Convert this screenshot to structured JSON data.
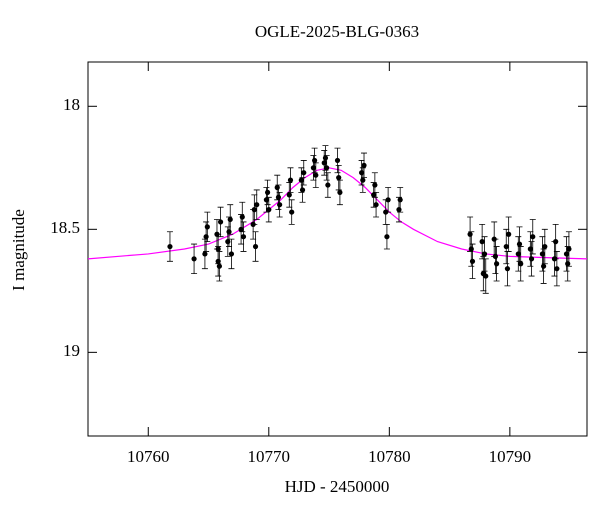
{
  "chart_data": {
    "type": "scatter",
    "title": "OGLE-2025-BLG-0363",
    "xlabel": "HJD - 2450000",
    "ylabel": "I magnitude",
    "xlim": [
      10755,
      10796.4
    ],
    "ylim": [
      19.34,
      17.82
    ],
    "xticks": [
      10760,
      10770,
      10780,
      10790
    ],
    "yticks": [
      18,
      18.5,
      19
    ],
    "color": "#000000",
    "x": [
      10761.8,
      10763.8,
      10764.7,
      10764.8,
      10764.9,
      10765.7,
      10765.8,
      10765.9,
      10765.8,
      10766.0,
      10766.7,
      10766.8,
      10766.9,
      10766.6,
      10767.7,
      10767.8,
      10767.9,
      10768.7,
      10768.8,
      10768.9,
      10769.0,
      10769.8,
      10769.9,
      10770.0,
      10770.7,
      10770.8,
      10770.9,
      10771.7,
      10771.8,
      10771.9,
      10772.7,
      10772.8,
      10772.9,
      10773.7,
      10773.8,
      10773.9,
      10774.7,
      10774.8,
      10774.9,
      10774.6,
      10775.7,
      10775.8,
      10775.9,
      10777.7,
      10777.8,
      10777.9,
      10778.7,
      10778.8,
      10778.9,
      10779.7,
      10779.8,
      10779.9,
      10780.8,
      10780.9,
      10786.7,
      10786.8,
      10786.9,
      10787.7,
      10787.8,
      10787.9,
      10788.0,
      10788.7,
      10788.8,
      10788.9,
      10789.7,
      10789.8,
      10789.9,
      10790.7,
      10790.8,
      10790.9,
      10791.7,
      10791.8,
      10791.9,
      10792.7,
      10792.8,
      10792.9,
      10793.7,
      10793.8,
      10793.9,
      10794.7,
      10794.8,
      10794.9
    ],
    "values": [
      18.57,
      18.62,
      18.6,
      18.53,
      18.49,
      18.52,
      18.63,
      18.65,
      18.58,
      18.47,
      18.51,
      18.46,
      18.6,
      18.55,
      18.5,
      18.45,
      18.53,
      18.48,
      18.42,
      18.57,
      18.4,
      18.38,
      18.35,
      18.42,
      18.33,
      18.37,
      18.4,
      18.36,
      18.3,
      18.43,
      18.3,
      18.34,
      18.27,
      18.25,
      18.22,
      18.28,
      18.21,
      18.25,
      18.32,
      18.23,
      18.22,
      18.29,
      18.35,
      18.27,
      18.3,
      18.24,
      18.36,
      18.32,
      18.4,
      18.43,
      18.53,
      18.38,
      18.42,
      18.38,
      18.52,
      18.58,
      18.63,
      18.55,
      18.68,
      18.6,
      18.69,
      18.54,
      18.61,
      18.64,
      18.57,
      18.66,
      18.52,
      18.6,
      18.56,
      18.64,
      18.58,
      18.62,
      18.53,
      18.6,
      18.65,
      18.57,
      18.62,
      18.55,
      18.66,
      18.6,
      18.64,
      18.58
    ],
    "errors": [
      0.06,
      0.06,
      0.06,
      0.06,
      0.06,
      0.06,
      0.06,
      0.06,
      0.06,
      0.06,
      0.06,
      0.06,
      0.06,
      0.06,
      0.06,
      0.06,
      0.06,
      0.06,
      0.06,
      0.06,
      0.06,
      0.05,
      0.05,
      0.05,
      0.05,
      0.05,
      0.05,
      0.05,
      0.05,
      0.05,
      0.05,
      0.05,
      0.05,
      0.05,
      0.05,
      0.05,
      0.05,
      0.05,
      0.05,
      0.05,
      0.05,
      0.05,
      0.05,
      0.05,
      0.05,
      0.05,
      0.05,
      0.05,
      0.05,
      0.05,
      0.05,
      0.05,
      0.05,
      0.05,
      0.07,
      0.07,
      0.07,
      0.07,
      0.07,
      0.07,
      0.07,
      0.07,
      0.07,
      0.07,
      0.07,
      0.07,
      0.07,
      0.07,
      0.07,
      0.07,
      0.07,
      0.07,
      0.07,
      0.07,
      0.07,
      0.07,
      0.07,
      0.07,
      0.07,
      0.07,
      0.07,
      0.07
    ],
    "model": {
      "color": "#ff00ff",
      "x": [
        10755,
        10760,
        10763,
        10765,
        10767,
        10769,
        10770,
        10771,
        10772,
        10773,
        10774,
        10775,
        10776,
        10777,
        10778,
        10779,
        10780,
        10781,
        10782,
        10784,
        10786,
        10788,
        10790,
        10793,
        10796.4
      ],
      "values": [
        18.62,
        18.6,
        18.58,
        18.56,
        18.52,
        18.46,
        18.42,
        18.38,
        18.33,
        18.29,
        18.26,
        18.25,
        18.26,
        18.29,
        18.33,
        18.38,
        18.43,
        18.47,
        18.5,
        18.55,
        18.58,
        18.6,
        18.61,
        18.615,
        18.62
      ]
    }
  }
}
